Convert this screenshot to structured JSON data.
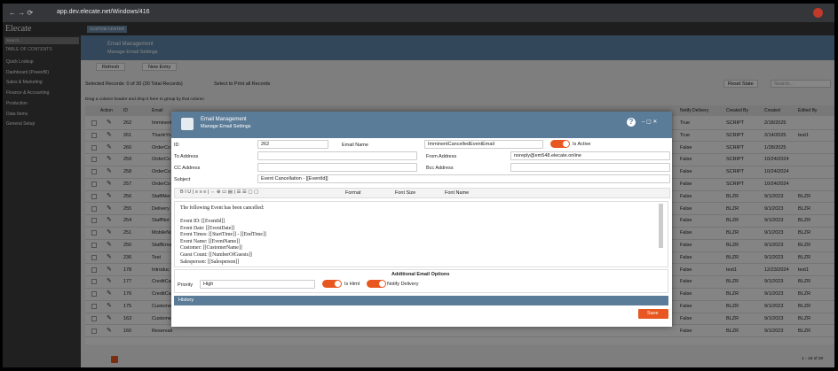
{
  "browser": {
    "url": "app.dev.elecate.net/Windows/416"
  },
  "sidebar": {
    "logo": "Elecate",
    "search": "Search...",
    "toc": "TABLE OF CONTENTS",
    "items": [
      "Quick Lookup",
      "Dashboard (PowerBI)",
      "Sales & Marketing",
      "Finance & Accounting",
      "Production",
      "Data Items",
      "General Setup"
    ]
  },
  "topbar": {
    "center_button": "CUSTOM CENTER"
  },
  "header": {
    "title": "Email Management",
    "subtitle": "Manage Email Settings"
  },
  "toolbar": {
    "refresh": "Refresh",
    "new_entry": "New Entry"
  },
  "status": {
    "selected": "Selected Records: 0 of 30 (30 Total Records)",
    "print_all": "Select to Print all Records",
    "reset_state": "Reset State",
    "search": "Search..."
  },
  "group_hint": "Drag a column header and drop it here to group by that column",
  "grid": {
    "columns": [
      "Action",
      "ID",
      "Email",
      "Notify Delivery",
      "Created By",
      "Created",
      "Edited By"
    ],
    "rows": [
      [
        "262",
        "Imminent",
        "True",
        "SCRIPT",
        "2/18/2025"
      ],
      [
        "261",
        "ThankYo",
        "True",
        "SCRIPT",
        "2/14/2025",
        "test1"
      ],
      [
        "260",
        "OrderCo",
        "False",
        "SCRIPT",
        "1/28/2025"
      ],
      [
        "259",
        "OrderCo",
        "False",
        "SCRIPT",
        "10/24/2024"
      ],
      [
        "258",
        "OrderCo",
        "False",
        "SCRIPT",
        "10/24/2024"
      ],
      [
        "257",
        "OrderCo",
        "False",
        "SCRIPT",
        "10/24/2024"
      ],
      [
        "256",
        "StaffAler",
        "False",
        "BLZR",
        "9/1/2023",
        "BLZR"
      ],
      [
        "255",
        "Delivery",
        "False",
        "BLZR",
        "9/1/2023",
        "BLZR"
      ],
      [
        "254",
        "StaffNot",
        "False",
        "BLZR",
        "9/1/2023",
        "BLZR"
      ],
      [
        "251",
        "MobileNo",
        "False",
        "BLZR",
        "9/1/2023",
        "BLZR"
      ],
      [
        "250",
        "StaffEma",
        "False",
        "BLZR",
        "9/1/2023",
        "BLZR"
      ],
      [
        "236",
        "Test",
        "False",
        "BLZR",
        "9/1/2023",
        "BLZR"
      ],
      [
        "178",
        "Introduc",
        "False",
        "test1",
        "12/23/2024",
        "test1"
      ],
      [
        "177",
        "CreditCa",
        "False",
        "BLZR",
        "9/1/2023",
        "BLZR"
      ],
      [
        "176",
        "CreditCa",
        "False",
        "BLZR",
        "9/1/2023",
        "BLZR"
      ],
      [
        "175",
        "Custome",
        "False",
        "BLZR",
        "9/1/2023",
        "BLZR"
      ],
      [
        "163",
        "Custome",
        "False",
        "BLZR",
        "9/1/2023",
        "BLZR"
      ],
      [
        "160",
        "Reservati",
        "False",
        "BLZR",
        "9/1/2023",
        "BLZR"
      ]
    ]
  },
  "pagination": {
    "range": "1 - 18 of 30"
  },
  "modal": {
    "title": "Email Management",
    "subtitle": "Manage Email Settings",
    "fields": {
      "id_label": "ID",
      "id": "262",
      "email_name_label": "Email Name",
      "email_name": "ImminentCancelledEventEmail",
      "is_active": "Is Active",
      "to_label": "To Address",
      "from_label": "From Address",
      "from": "noreply@em548.elecate.online",
      "cc_label": "CC Address",
      "bcc_label": "Bcc Address",
      "subject_label": "Subject",
      "subject": "Event Cancellation - [[EventId]]"
    },
    "editor": {
      "format": "Format",
      "font_size": "Font Size",
      "font_name": "Font Name",
      "lines": [
        "The following Event has been cancelled:",
        "Event ID: [[EventId]]",
        "Event Date: [[EventDate]]",
        "Event Times: [[StartTime]] - [[EndTime]]",
        "Event Name: [[EventName]]",
        "Customer: [[CustomerName]]",
        "Guest Count: [[NumberOfGuests]]",
        "Salesperson: [[Salesperson]]"
      ]
    },
    "options": {
      "title": "Additional Email Options",
      "priority_label": "Priority",
      "priority": "High",
      "is_html": "Is Html",
      "notify_delivery": "Notify Delivery"
    },
    "history": "History",
    "save": "Save"
  }
}
